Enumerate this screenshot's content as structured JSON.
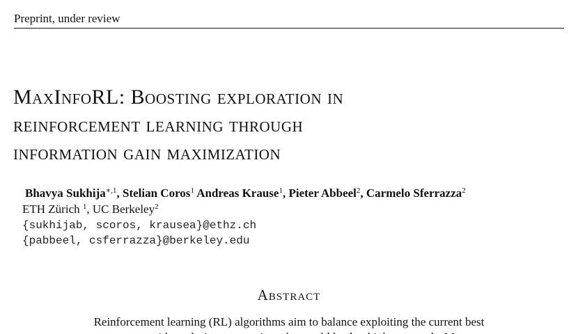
{
  "header": {
    "running_head": "Preprint, under review"
  },
  "paper": {
    "title_lines": [
      "MaxInfoRL: Boosting exploration in",
      "reinforcement learning through",
      "information gain maximization"
    ],
    "authors": [
      {
        "name": "Bhavya Sukhija",
        "sup": "∗,1",
        "sep": ", "
      },
      {
        "name": "Stelian Coros",
        "sup": "1",
        "sep": " "
      },
      {
        "name": "Andreas Krause",
        "sup": "1",
        "sep": ", "
      },
      {
        "name": "Pieter Abbeel",
        "sup": "2",
        "sep": ", "
      },
      {
        "name": "Carmelo Sferrazza",
        "sup": "2",
        "sep": ""
      }
    ],
    "affiliations": {
      "ethz": "ETH Zürich",
      "ethz_sup": "1",
      "sep": ", ",
      "berkeley": "UC Berkeley",
      "berkeley_sup": "2"
    },
    "emails": [
      "{sukhijab, scoros, krausea}@ethz.ch",
      "{pabbeel, csferrazza}@berkeley.edu"
    ],
    "abstract_heading": "Abstract",
    "abstract_line_1": "Reinforcement learning (RL) algorithms aim to balance exploiting the current best",
    "abstract_line_2_partial": "strategy with exploring new options that could lead to higher rewards. Most"
  }
}
